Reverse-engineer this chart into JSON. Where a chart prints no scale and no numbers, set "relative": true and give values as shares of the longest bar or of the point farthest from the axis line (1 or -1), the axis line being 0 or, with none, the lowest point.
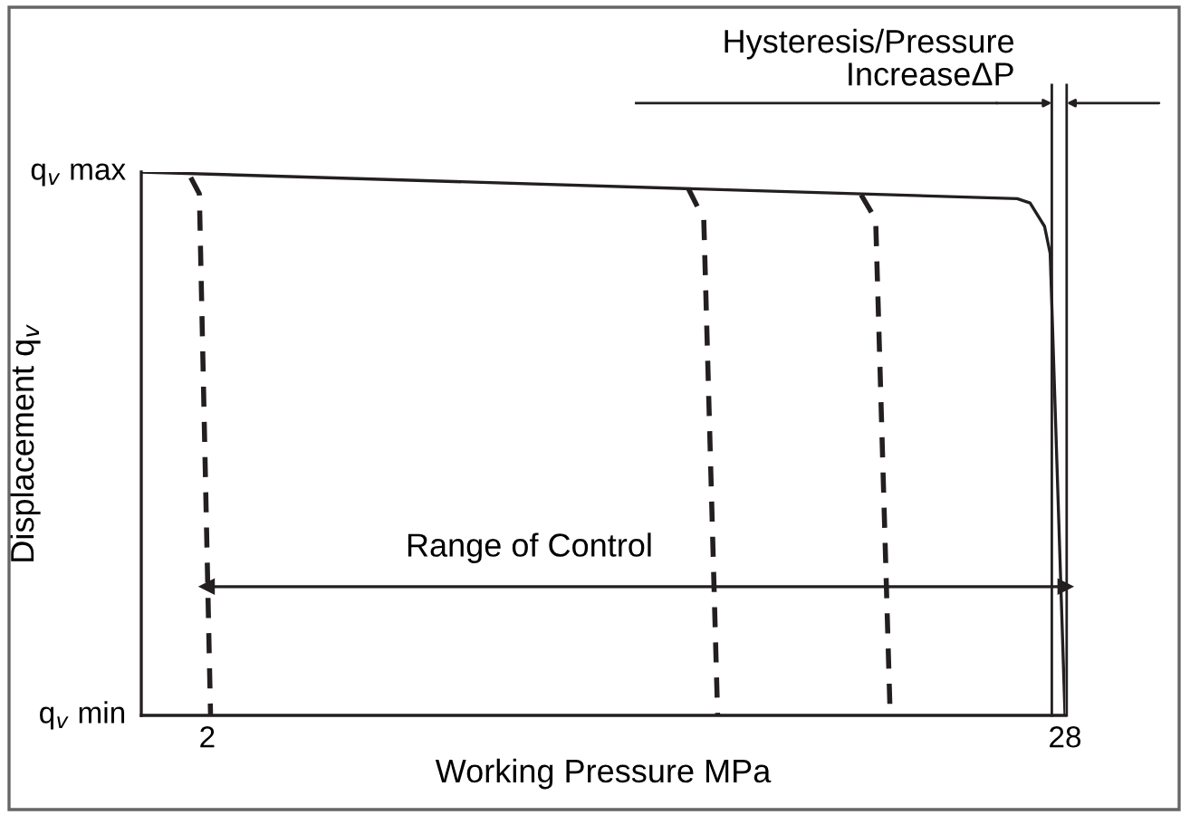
{
  "chart_data": {
    "type": "line",
    "xlabel": "Working Pressure MPa",
    "ylabel": "Displacement q$_{v}$",
    "xlim": [
      0,
      28
    ],
    "xticks": [
      2,
      28
    ],
    "relative": true,
    "grid": false,
    "legend": false,
    "series": [
      {
        "color": "#231f20",
        "line_style": "solid",
        "x": [
          0,
          26.55,
          26.94,
          27.38,
          27.55,
          28
        ],
        "values": [
          1,
          0.951,
          0.943,
          0.9,
          0.85,
          0
        ]
      },
      {
        "color": "#231f20",
        "line_style": "dashed",
        "x": [
          1.5,
          1.76,
          2.1
        ],
        "values": [
          0.99,
          0.96,
          0
        ]
      },
      {
        "color": "#231f20",
        "line_style": "dashed",
        "x": [
          16.58,
          17.05,
          17.47
        ],
        "values": [
          0.97,
          0.913,
          0
        ]
      },
      {
        "color": "#231f20",
        "line_style": "dashed",
        "x": [
          21.82,
          22.26,
          22.7
        ],
        "values": [
          0.958,
          0.913,
          0
        ]
      },
      {
        "color": "#231f20",
        "line_style": "solid",
        "marker": "triangle",
        "x": [
          2,
          28
        ],
        "values": [
          0.237,
          0.237
        ]
      }
    ],
    "ref_lines": [
      {
        "axis": "x",
        "value": 27.6,
        "color": "#231f20"
      },
      {
        "axis": "x",
        "value": 28.05,
        "color": "#231f20"
      }
    ],
    "annotations": [
      "q$_{v}$ max",
      "q$_{v}$ min",
      "Range of Control",
      "Hysteresis/Pressure\nIncreaseΔP"
    ]
  }
}
